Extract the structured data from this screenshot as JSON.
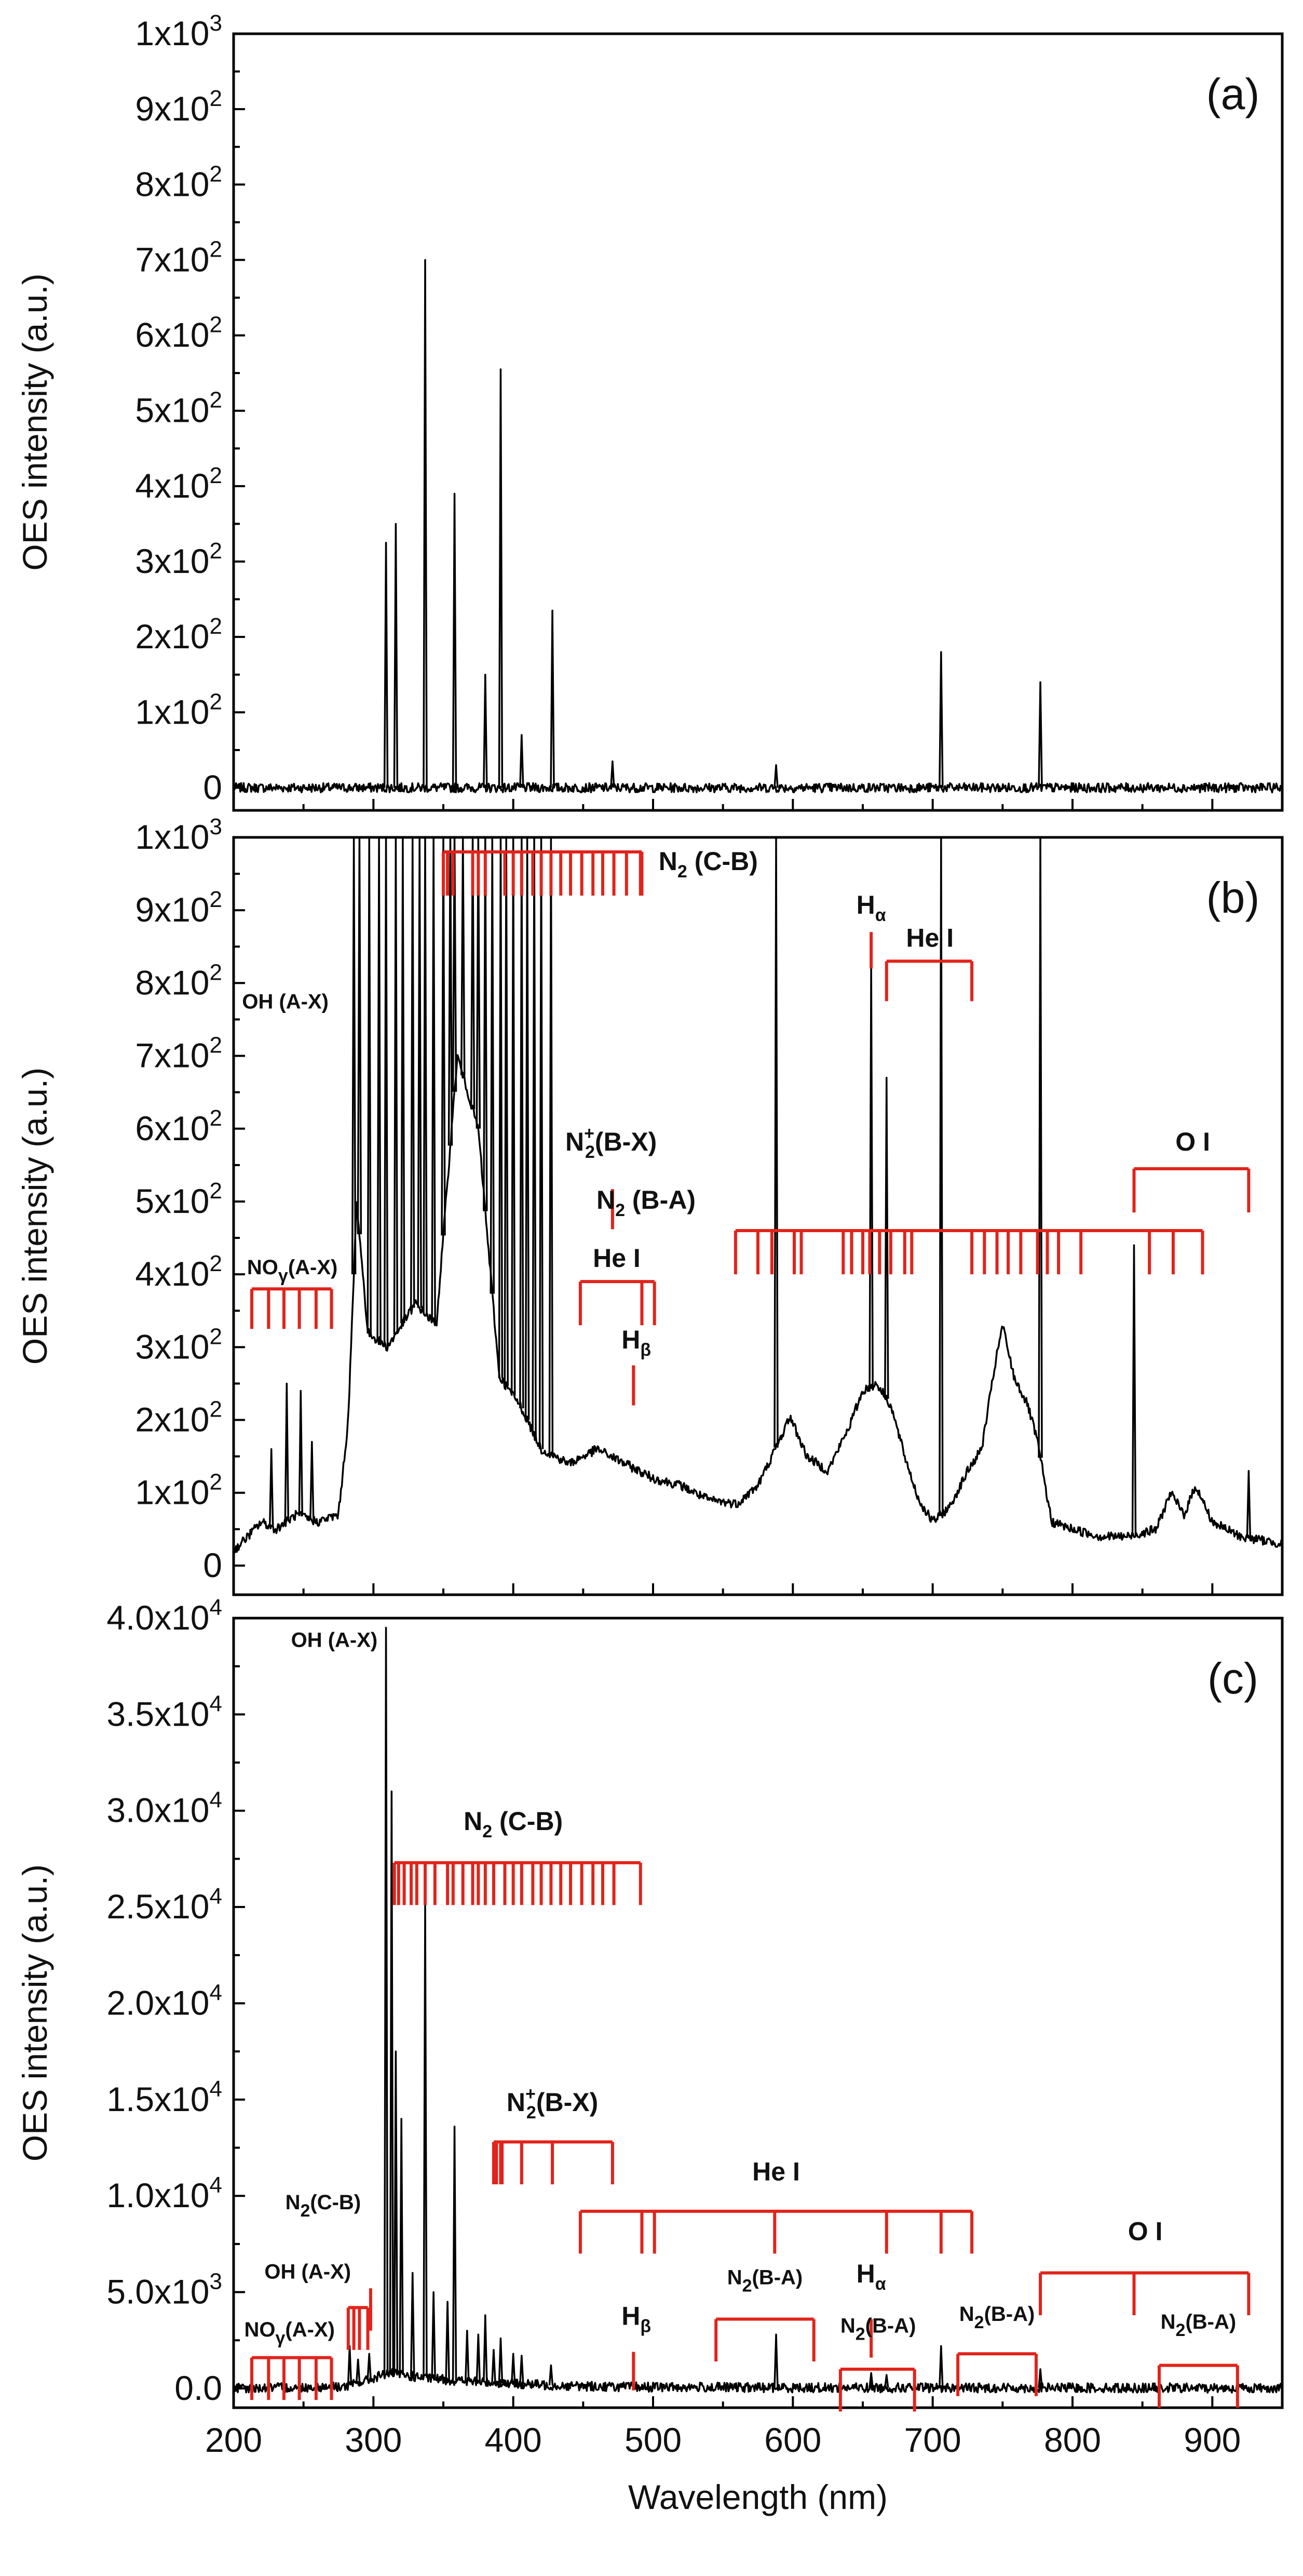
{
  "chart_data": [
    {
      "panel": "(a)",
      "type": "line",
      "ylabel": "OES intensity (a.u.)",
      "ylim": [
        -30,
        1000
      ],
      "xlim": [
        200,
        950
      ],
      "yticks": [
        {
          "v": 0,
          "m": "0",
          "e": ""
        },
        {
          "v": 100,
          "m": "1x10",
          "e": "2"
        },
        {
          "v": 200,
          "m": "2x10",
          "e": "2"
        },
        {
          "v": 300,
          "m": "3x10",
          "e": "2"
        },
        {
          "v": 400,
          "m": "4x10",
          "e": "2"
        },
        {
          "v": 500,
          "m": "5x10",
          "e": "2"
        },
        {
          "v": 600,
          "m": "6x10",
          "e": "2"
        },
        {
          "v": 700,
          "m": "7x10",
          "e": "2"
        },
        {
          "v": 800,
          "m": "8x10",
          "e": "2"
        },
        {
          "v": 900,
          "m": "9x10",
          "e": "2"
        },
        {
          "v": 1000,
          "m": "1x10",
          "e": "3"
        }
      ],
      "baseline": [
        [
          200,
          0
        ],
        [
          950,
          0
        ]
      ],
      "peaks": [
        [
          309,
          325
        ],
        [
          316,
          350
        ],
        [
          337,
          700
        ],
        [
          358,
          390
        ],
        [
          380,
          150
        ],
        [
          391,
          555
        ],
        [
          406,
          70
        ],
        [
          428,
          235
        ],
        [
          471,
          35
        ],
        [
          588,
          30
        ],
        [
          706,
          180
        ],
        [
          777,
          140
        ]
      ],
      "annotations": []
    },
    {
      "panel": "(b)",
      "type": "line",
      "ylabel": "OES intensity (a.u.)",
      "ylim": [
        -40,
        1000
      ],
      "xlim": [
        200,
        950
      ],
      "yticks": [
        {
          "v": 0,
          "m": "0",
          "e": ""
        },
        {
          "v": 100,
          "m": "1x10",
          "e": "2"
        },
        {
          "v": 200,
          "m": "2x10",
          "e": "2"
        },
        {
          "v": 300,
          "m": "3x10",
          "e": "2"
        },
        {
          "v": 400,
          "m": "4x10",
          "e": "2"
        },
        {
          "v": 500,
          "m": "5x10",
          "e": "2"
        },
        {
          "v": 600,
          "m": "6x10",
          "e": "2"
        },
        {
          "v": 700,
          "m": "7x10",
          "e": "2"
        },
        {
          "v": 800,
          "m": "8x10",
          "e": "2"
        },
        {
          "v": 900,
          "m": "9x10",
          "e": "2"
        },
        {
          "v": 1000,
          "m": "1x10",
          "e": "3"
        }
      ],
      "baseline": [
        [
          200,
          20
        ],
        [
          210,
          40
        ],
        [
          220,
          60
        ],
        [
          230,
          50
        ],
        [
          245,
          70
        ],
        [
          260,
          60
        ],
        [
          275,
          70
        ],
        [
          282,
          200
        ],
        [
          288,
          500
        ],
        [
          296,
          320
        ],
        [
          310,
          300
        ],
        [
          330,
          360
        ],
        [
          345,
          330
        ],
        [
          360,
          700
        ],
        [
          375,
          600
        ],
        [
          390,
          260
        ],
        [
          405,
          220
        ],
        [
          420,
          160
        ],
        [
          440,
          140
        ],
        [
          460,
          160
        ],
        [
          480,
          140
        ],
        [
          500,
          120
        ],
        [
          520,
          110
        ],
        [
          540,
          90
        ],
        [
          560,
          85
        ],
        [
          575,
          110
        ],
        [
          590,
          170
        ],
        [
          598,
          205
        ],
        [
          610,
          150
        ],
        [
          625,
          130
        ],
        [
          640,
          190
        ],
        [
          650,
          240
        ],
        [
          660,
          250
        ],
        [
          670,
          220
        ],
        [
          680,
          150
        ],
        [
          690,
          90
        ],
        [
          700,
          60
        ],
        [
          712,
          80
        ],
        [
          725,
          130
        ],
        [
          735,
          160
        ],
        [
          745,
          280
        ],
        [
          750,
          330
        ],
        [
          758,
          260
        ],
        [
          768,
          220
        ],
        [
          775,
          170
        ],
        [
          785,
          60
        ],
        [
          800,
          50
        ],
        [
          820,
          40
        ],
        [
          840,
          40
        ],
        [
          860,
          50
        ],
        [
          870,
          100
        ],
        [
          880,
          70
        ],
        [
          888,
          110
        ],
        [
          900,
          60
        ],
        [
          920,
          40
        ],
        [
          950,
          30
        ]
      ],
      "peaks": [
        [
          286,
          1000
        ],
        [
          290,
          1000
        ],
        [
          297,
          1000
        ],
        [
          304,
          1000
        ],
        [
          309,
          1000
        ],
        [
          316,
          1000
        ],
        [
          321,
          1000
        ],
        [
          328,
          1000
        ],
        [
          333,
          1000
        ],
        [
          337,
          1000
        ],
        [
          343,
          1000
        ],
        [
          350,
          1000
        ],
        [
          355,
          1000
        ],
        [
          358,
          1000
        ],
        [
          364,
          1000
        ],
        [
          371,
          1000
        ],
        [
          375,
          1000
        ],
        [
          380,
          1000
        ],
        [
          385,
          1000
        ],
        [
          391,
          1000
        ],
        [
          395,
          1000
        ],
        [
          400,
          1000
        ],
        [
          406,
          1000
        ],
        [
          410,
          1000
        ],
        [
          415,
          1000
        ],
        [
          420,
          1000
        ],
        [
          427,
          1000
        ],
        [
          238,
          250
        ],
        [
          248,
          240
        ],
        [
          227,
          160
        ],
        [
          256,
          170
        ],
        [
          588,
          1000
        ],
        [
          656,
          830
        ],
        [
          667,
          670
        ],
        [
          706,
          1000
        ],
        [
          777,
          1000
        ],
        [
          844,
          440
        ],
        [
          926,
          130
        ]
      ],
      "annotations": [
        {
          "label": "N",
          "sub": "2",
          "rest": " (C-B)",
          "kind": "bracket",
          "x1": 350,
          "x2": 492,
          "y": 980,
          "ticks": [
            353,
            357,
            371,
            375,
            380,
            394,
            400,
            406,
            414,
            420,
            427,
            434,
            441,
            449,
            457,
            464,
            472,
            481,
            491
          ],
          "tickLen": 60,
          "lx": 504,
          "ly": 955,
          "anchor": "start"
        },
        {
          "label": "H",
          "sub": "α",
          "rest": "",
          "kind": "line",
          "x": 656,
          "y1": 820,
          "y2": 870,
          "lx": 656,
          "ly": 895,
          "anchor": "middle"
        },
        {
          "label": "He I",
          "rest": "",
          "kind": "bracket",
          "x1": 667,
          "x2": 728,
          "y": 830,
          "ticks": [],
          "tickLen": 55,
          "lx": 698,
          "ly": 850,
          "anchor": "middle"
        },
        {
          "label": "OH (A-X)",
          "rest": "",
          "kind": "text",
          "lx": 237,
          "ly": 765,
          "anchor": "middle",
          "small": true
        },
        {
          "label": "N",
          "sub": "2",
          "sup": "+",
          "rest": "(B-X)",
          "kind": "line",
          "x": 471,
          "y1": 462,
          "y2": 517,
          "lx": 470,
          "ly": 570,
          "anchor": "middle"
        },
        {
          "label": "N",
          "sub": "2",
          "rest": " (B-A)",
          "kind": "bracket",
          "x1": 559,
          "x2": 893,
          "y": 460,
          "ticks": [
            575,
            585,
            601,
            606,
            636,
            642,
            650,
            655,
            662,
            670,
            680,
            685,
            728,
            737,
            746,
            754,
            763,
            775,
            782,
            790,
            806,
            855,
            872,
            893
          ],
          "tickLen": 60,
          "lx": 495,
          "ly": 490,
          "anchor": "middle"
        },
        {
          "label": "O I",
          "rest": "",
          "kind": "bracket",
          "x1": 844,
          "x2": 926,
          "y": 545,
          "ticks": [],
          "tickLen": 60,
          "lx": 886,
          "ly": 570,
          "anchor": "middle"
        },
        {
          "label": "NO",
          "sub": "γ",
          "rest": "(A-X)",
          "kind": "bracket",
          "x1": 213,
          "x2": 270,
          "y": 380,
          "ticks": [
            225,
            236,
            247,
            259
          ],
          "tickLen": 55,
          "lx": 242,
          "ly": 400,
          "anchor": "middle",
          "small": true
        },
        {
          "label": "He I",
          "rest": "",
          "kind": "bracket",
          "x1": 448,
          "x2": 501,
          "y": 390,
          "ticks": [
            492
          ],
          "tickLen": 60,
          "lx": 474,
          "ly": 410,
          "anchor": "middle"
        },
        {
          "label": "H",
          "sub": "β",
          "rest": "",
          "kind": "line",
          "x": 486,
          "y1": 220,
          "y2": 275,
          "lx": 488,
          "ly": 298,
          "anchor": "middle"
        }
      ]
    },
    {
      "panel": "(c)",
      "type": "line",
      "ylabel": "OES intensity (a.u.)",
      "ylim": [
        -1000,
        40000
      ],
      "xlim": [
        200,
        950
      ],
      "xlabel": "Wavelength (nm)",
      "xticks": [
        "200",
        "300",
        "400",
        "500",
        "600",
        "700",
        "800",
        "900"
      ],
      "yticks": [
        {
          "v": 0,
          "m": "0.0",
          "e": ""
        },
        {
          "v": 5000,
          "m": "5.0x10",
          "e": "3"
        },
        {
          "v": 10000,
          "m": "1.0x10",
          "e": "4"
        },
        {
          "v": 15000,
          "m": "1.5x10",
          "e": "4"
        },
        {
          "v": 20000,
          "m": "2.0x10",
          "e": "4"
        },
        {
          "v": 25000,
          "m": "2.5x10",
          "e": "4"
        },
        {
          "v": 30000,
          "m": "3.0x10",
          "e": "4"
        },
        {
          "v": 35000,
          "m": "3.5x10",
          "e": "4"
        },
        {
          "v": 40000,
          "m": "4.0x10",
          "e": "4"
        }
      ],
      "baseline": [
        [
          200,
          0
        ],
        [
          280,
          100
        ],
        [
          295,
          400
        ],
        [
          310,
          800
        ],
        [
          330,
          600
        ],
        [
          360,
          400
        ],
        [
          400,
          250
        ],
        [
          430,
          150
        ],
        [
          480,
          80
        ],
        [
          600,
          40
        ],
        [
          950,
          20
        ]
      ],
      "peaks": [
        [
          283,
          2200
        ],
        [
          289,
          1500
        ],
        [
          297,
          1800
        ],
        [
          309,
          39500
        ],
        [
          313,
          31000
        ],
        [
          316,
          17500
        ],
        [
          320,
          14000
        ],
        [
          328,
          6000
        ],
        [
          337,
          25200
        ],
        [
          343,
          5000
        ],
        [
          353,
          4500
        ],
        [
          358,
          13600
        ],
        [
          367,
          3000
        ],
        [
          375,
          2800
        ],
        [
          380,
          3800
        ],
        [
          386,
          2000
        ],
        [
          391,
          2600
        ],
        [
          400,
          1800
        ],
        [
          406,
          1700
        ],
        [
          427,
          1200
        ],
        [
          588,
          2800
        ],
        [
          656,
          800
        ],
        [
          667,
          700
        ],
        [
          706,
          2200
        ],
        [
          777,
          1000
        ]
      ],
      "annotations": [
        {
          "label": "OH (A-X)",
          "rest": "",
          "kind": "text",
          "lx": 272,
          "ly": 38500,
          "anchor": "middle",
          "small": true
        },
        {
          "label": "N",
          "sub": "2",
          "rest": " (C-B)",
          "kind": "bracket",
          "x1": 315,
          "x2": 491,
          "y": 27300,
          "ticks": [
            318,
            322,
            327,
            331,
            337,
            344,
            353,
            357,
            364,
            371,
            375,
            380,
            386,
            394,
            400,
            406,
            414,
            420,
            427,
            434,
            441,
            449,
            457,
            464,
            472
          ],
          "tickLen": 2200,
          "lx": 400,
          "ly": 29000,
          "anchor": "middle"
        },
        {
          "label": "N",
          "sub": "2",
          "sup": "+",
          "rest": "(B-X)",
          "kind": "bracket",
          "x1": 386,
          "x2": 471,
          "y": 12800,
          "ticks": [
            388,
            391,
            392,
            406,
            428
          ],
          "tickLen": 2200,
          "lx": 428,
          "ly": 14400,
          "anchor": "middle"
        },
        {
          "label": "He I",
          "rest": "",
          "kind": "bracket",
          "x1": 448,
          "x2": 728,
          "y": 9200,
          "ticks": [
            492,
            501,
            587,
            667,
            706
          ],
          "tickLen": 2200,
          "lx": 588,
          "ly": 10800,
          "anchor": "middle"
        },
        {
          "label": "N",
          "sub": "2",
          "rest": "(C-B)",
          "kind": "line",
          "x": 298,
          "y1": 3000,
          "y2": 5200,
          "lx": 264,
          "ly": 9300,
          "anchor": "middle",
          "small": true
        },
        {
          "label": "OH (A-X)",
          "rest": "",
          "kind": "bracket",
          "x1": 282,
          "x2": 296,
          "y": 4200,
          "ticks": [
            286,
            290
          ],
          "tickLen": 2200,
          "lx": 253,
          "ly": 5700,
          "anchor": "middle",
          "small": true
        },
        {
          "label": "NO",
          "sub": "γ",
          "rest": "(A-X)",
          "kind": "bracket",
          "x1": 213,
          "x2": 270,
          "y": 1600,
          "ticks": [
            225,
            236,
            247,
            259
          ],
          "tickLen": 2200,
          "lx": 240,
          "ly": 2700,
          "anchor": "middle",
          "small": true
        },
        {
          "label": "H",
          "sub": "β",
          "rest": "",
          "kind": "line",
          "x": 486,
          "y1": -100,
          "y2": 1900,
          "lx": 488,
          "ly": 3300,
          "anchor": "middle"
        },
        {
          "label": "N",
          "sub": "2",
          "rest": "(B-A)",
          "kind": "bracket",
          "x1": 545,
          "x2": 615,
          "y": 3600,
          "ticks": [],
          "tickLen": 2200,
          "lx": 580,
          "ly": 5400,
          "anchor": "middle",
          "small": true
        },
        {
          "label": "H",
          "sub": "α",
          "rest": "",
          "kind": "line",
          "x": 656,
          "y1": 1600,
          "y2": 3600,
          "lx": 656,
          "ly": 5500,
          "anchor": "middle"
        },
        {
          "label": "N",
          "sub": "2",
          "rest": "(B-A)",
          "kind": "bracket",
          "x1": 634,
          "x2": 687,
          "y": 1000,
          "ticks": [],
          "tickLen": 2200,
          "lx": 661,
          "ly": 2900,
          "anchor": "middle",
          "small": true
        },
        {
          "label": "N",
          "sub": "2",
          "rest": "(B-A)",
          "kind": "bracket",
          "x1": 718,
          "x2": 774,
          "y": 1800,
          "ticks": [],
          "tickLen": 2200,
          "lx": 746,
          "ly": 3500,
          "anchor": "middle",
          "small": true
        },
        {
          "label": "O I",
          "rest": "",
          "kind": "bracket",
          "x1": 777,
          "x2": 926,
          "y": 6000,
          "ticks": [
            844
          ],
          "tickLen": 2200,
          "lx": 852,
          "ly": 7700,
          "anchor": "middle"
        },
        {
          "label": "N",
          "sub": "2",
          "rest": "(B-A)",
          "kind": "bracket",
          "x1": 862,
          "x2": 918,
          "y": 1200,
          "ticks": [],
          "tickLen": 2200,
          "lx": 890,
          "ly": 3100,
          "anchor": "middle",
          "small": true
        }
      ]
    }
  ]
}
